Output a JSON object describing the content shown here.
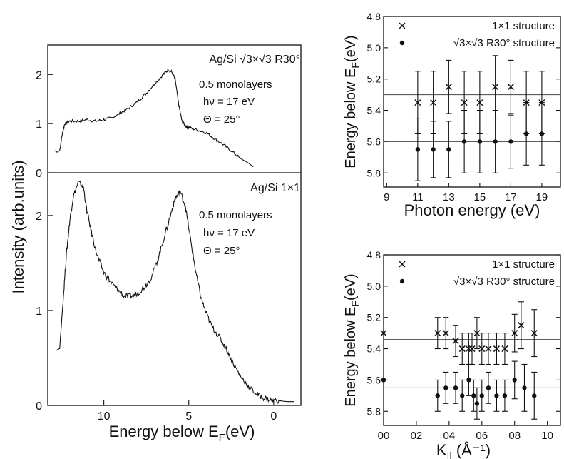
{
  "chart_data": [
    {
      "type": "line",
      "xlabel": "Energy below E",
      "xlabel_sub": "F",
      "xlabel_unit": "(eV)",
      "ylabel": "Intensity (arb.units)",
      "xlim": [
        13.3,
        -1.6
      ],
      "x_ticks": [
        "10",
        "5",
        "0"
      ],
      "x_tick_values": [
        10,
        5,
        0
      ],
      "panels": [
        {
          "name": "Ag/Si √3×√3 R30°",
          "annotations": [
            "Ag/Si √3×√3 R30°",
            "0.5 monolayers",
            "hν = 17 eV",
            "Θ = 25°"
          ],
          "ylim": [
            0,
            2.6
          ],
          "y_ticks": [
            "0",
            "1",
            "2"
          ],
          "y_tick_values": [
            0,
            1,
            2
          ],
          "x": [
            12.9,
            12.75,
            12.6,
            12.45,
            12.3,
            12.0,
            11.5,
            11.0,
            10.5,
            10.0,
            9.5,
            9.0,
            8.5,
            8.0,
            7.5,
            7.0,
            6.5,
            6.2,
            6.0,
            5.8,
            5.6,
            5.4,
            5.2,
            5.0,
            4.6,
            4.0,
            3.5,
            3.0,
            2.5,
            2.0,
            1.5,
            1.2
          ],
          "y": [
            0.45,
            0.42,
            0.45,
            0.78,
            1.0,
            1.05,
            1.05,
            1.08,
            1.05,
            1.08,
            1.12,
            1.22,
            1.32,
            1.45,
            1.62,
            1.82,
            2.0,
            2.1,
            2.05,
            1.9,
            1.4,
            1.05,
            0.95,
            0.92,
            0.88,
            0.82,
            0.7,
            0.58,
            0.45,
            0.3,
            0.2,
            0.12
          ]
        },
        {
          "name": "Ag/Si 1×1",
          "annotations": [
            "Ag/Si 1×1",
            "0.5 monolayers",
            "hν = 17 eV",
            "Θ = 25°"
          ],
          "ylim": [
            0,
            2.45
          ],
          "y_ticks": [
            "0",
            "1",
            "2"
          ],
          "y_tick_values": [
            0,
            1,
            2
          ],
          "x": [
            12.8,
            12.6,
            12.4,
            12.2,
            12.0,
            11.8,
            11.5,
            11.2,
            11.0,
            10.7,
            10.4,
            10.0,
            9.6,
            9.2,
            8.8,
            8.4,
            8.0,
            7.6,
            7.2,
            6.8,
            6.4,
            6.0,
            5.8,
            5.5,
            5.2,
            4.9,
            4.6,
            4.3,
            4.0,
            3.6,
            3.2,
            2.8,
            2.4,
            2.0,
            1.5,
            1.0,
            0.6,
            0.2,
            -0.3,
            -0.8,
            -1.2
          ],
          "y": [
            0.58,
            0.6,
            1.1,
            1.6,
            1.95,
            2.2,
            2.35,
            2.3,
            2.05,
            1.8,
            1.58,
            1.4,
            1.3,
            1.22,
            1.15,
            1.15,
            1.18,
            1.25,
            1.35,
            1.55,
            1.8,
            2.05,
            2.18,
            2.25,
            2.1,
            1.75,
            1.42,
            1.15,
            0.98,
            0.82,
            0.72,
            0.6,
            0.45,
            0.32,
            0.2,
            0.12,
            0.08,
            0.06,
            0.05,
            0.04,
            0.04
          ]
        }
      ]
    },
    {
      "type": "scatter",
      "xlabel": "Photon energy (eV)",
      "ylabel": "Energy below E",
      "ylabel_sub": "F",
      "ylabel_unit": "(eV)",
      "xlim": [
        8.8,
        20.2
      ],
      "ylim": [
        5.89,
        4.8
      ],
      "x_ticks": [
        "9",
        "11",
        "13",
        "15",
        "17",
        "19"
      ],
      "x_tick_values": [
        9,
        11,
        13,
        15,
        17,
        19
      ],
      "y_ticks": [
        "4.8",
        "5.0",
        "5.2",
        "5.4",
        "5.6",
        "5.8"
      ],
      "y_tick_values": [
        4.8,
        5.0,
        5.2,
        5.4,
        5.6,
        5.8
      ],
      "legend": [
        {
          "marker": "×",
          "label": "1×1 structure"
        },
        {
          "marker": "•",
          "label": "√3×√3 R30° structure"
        }
      ],
      "hlines": [
        5.3,
        5.6
      ],
      "series": [
        {
          "name": "1×1 structure",
          "marker": "cross",
          "x": [
            11,
            12,
            13,
            14,
            15,
            16,
            17,
            18,
            19
          ],
          "y": [
            5.35,
            5.35,
            5.25,
            5.35,
            5.35,
            5.25,
            5.25,
            5.35,
            5.35
          ],
          "err": [
            0.2,
            0.2,
            0.17,
            0.2,
            0.2,
            0.2,
            0.17,
            0.2,
            0.2
          ]
        },
        {
          "name": "√3×√3 R30° structure",
          "marker": "dot",
          "x": [
            11,
            12,
            13,
            14,
            15,
            16,
            17,
            18,
            19
          ],
          "y": [
            5.65,
            5.65,
            5.65,
            5.6,
            5.6,
            5.6,
            5.6,
            5.55,
            5.55
          ],
          "err": [
            0.2,
            0.18,
            0.18,
            0.2,
            0.2,
            0.2,
            0.17,
            0.2,
            0.2
          ]
        }
      ]
    },
    {
      "type": "scatter",
      "xlabel": "K",
      "xlabel_sub": "||",
      "xlabel_unit": "(Å⁻¹)",
      "ylabel": "Energy below E",
      "ylabel_sub": "F",
      "ylabel_unit": "(eV)",
      "xlim": [
        0.0,
        1.08
      ],
      "ylim": [
        5.89,
        4.8
      ],
      "x_ticks": [
        "00",
        "02",
        "04",
        "06",
        "08",
        "10"
      ],
      "x_tick_values": [
        0.0,
        0.2,
        0.4,
        0.6,
        0.8,
        1.0
      ],
      "y_ticks": [
        "4.8",
        "5.0",
        "5.2",
        "5.4",
        "5.6",
        "5.8"
      ],
      "y_tick_values": [
        4.8,
        5.0,
        5.2,
        5.4,
        5.6,
        5.8
      ],
      "legend": [
        {
          "marker": "×",
          "label": "1×1 structure"
        },
        {
          "marker": "•",
          "label": "√3×√3 R30° structure"
        }
      ],
      "hlines": [
        5.34,
        5.65
      ],
      "series": [
        {
          "name": "1×1 structure",
          "marker": "cross",
          "x": [
            0.0,
            0.33,
            0.38,
            0.44,
            0.48,
            0.52,
            0.54,
            0.57,
            0.6,
            0.64,
            0.69,
            0.74,
            0.8,
            0.84,
            0.92
          ],
          "y": [
            5.3,
            5.3,
            5.3,
            5.35,
            5.4,
            5.4,
            5.4,
            5.3,
            5.4,
            5.4,
            5.4,
            5.4,
            5.3,
            5.25,
            5.3
          ],
          "err": [
            0,
            0.1,
            0.1,
            0.1,
            0.1,
            0.1,
            0.1,
            0.1,
            0.1,
            0.1,
            0.1,
            0.1,
            0.12,
            0.15,
            0.15
          ]
        },
        {
          "name": "√3×√3 R30° structure",
          "marker": "dot",
          "x": [
            0.0,
            0.33,
            0.38,
            0.44,
            0.48,
            0.52,
            0.55,
            0.57,
            0.6,
            0.64,
            0.69,
            0.74,
            0.8,
            0.86,
            0.92
          ],
          "y": [
            5.6,
            5.7,
            5.65,
            5.65,
            5.7,
            5.6,
            5.7,
            5.75,
            5.7,
            5.65,
            5.7,
            5.7,
            5.6,
            5.65,
            5.7
          ],
          "err": [
            0,
            0.1,
            0.1,
            0.1,
            0.1,
            0.1,
            0.1,
            0.1,
            0.1,
            0.1,
            0.1,
            0.1,
            0.12,
            0.15,
            0.15
          ]
        }
      ]
    }
  ]
}
